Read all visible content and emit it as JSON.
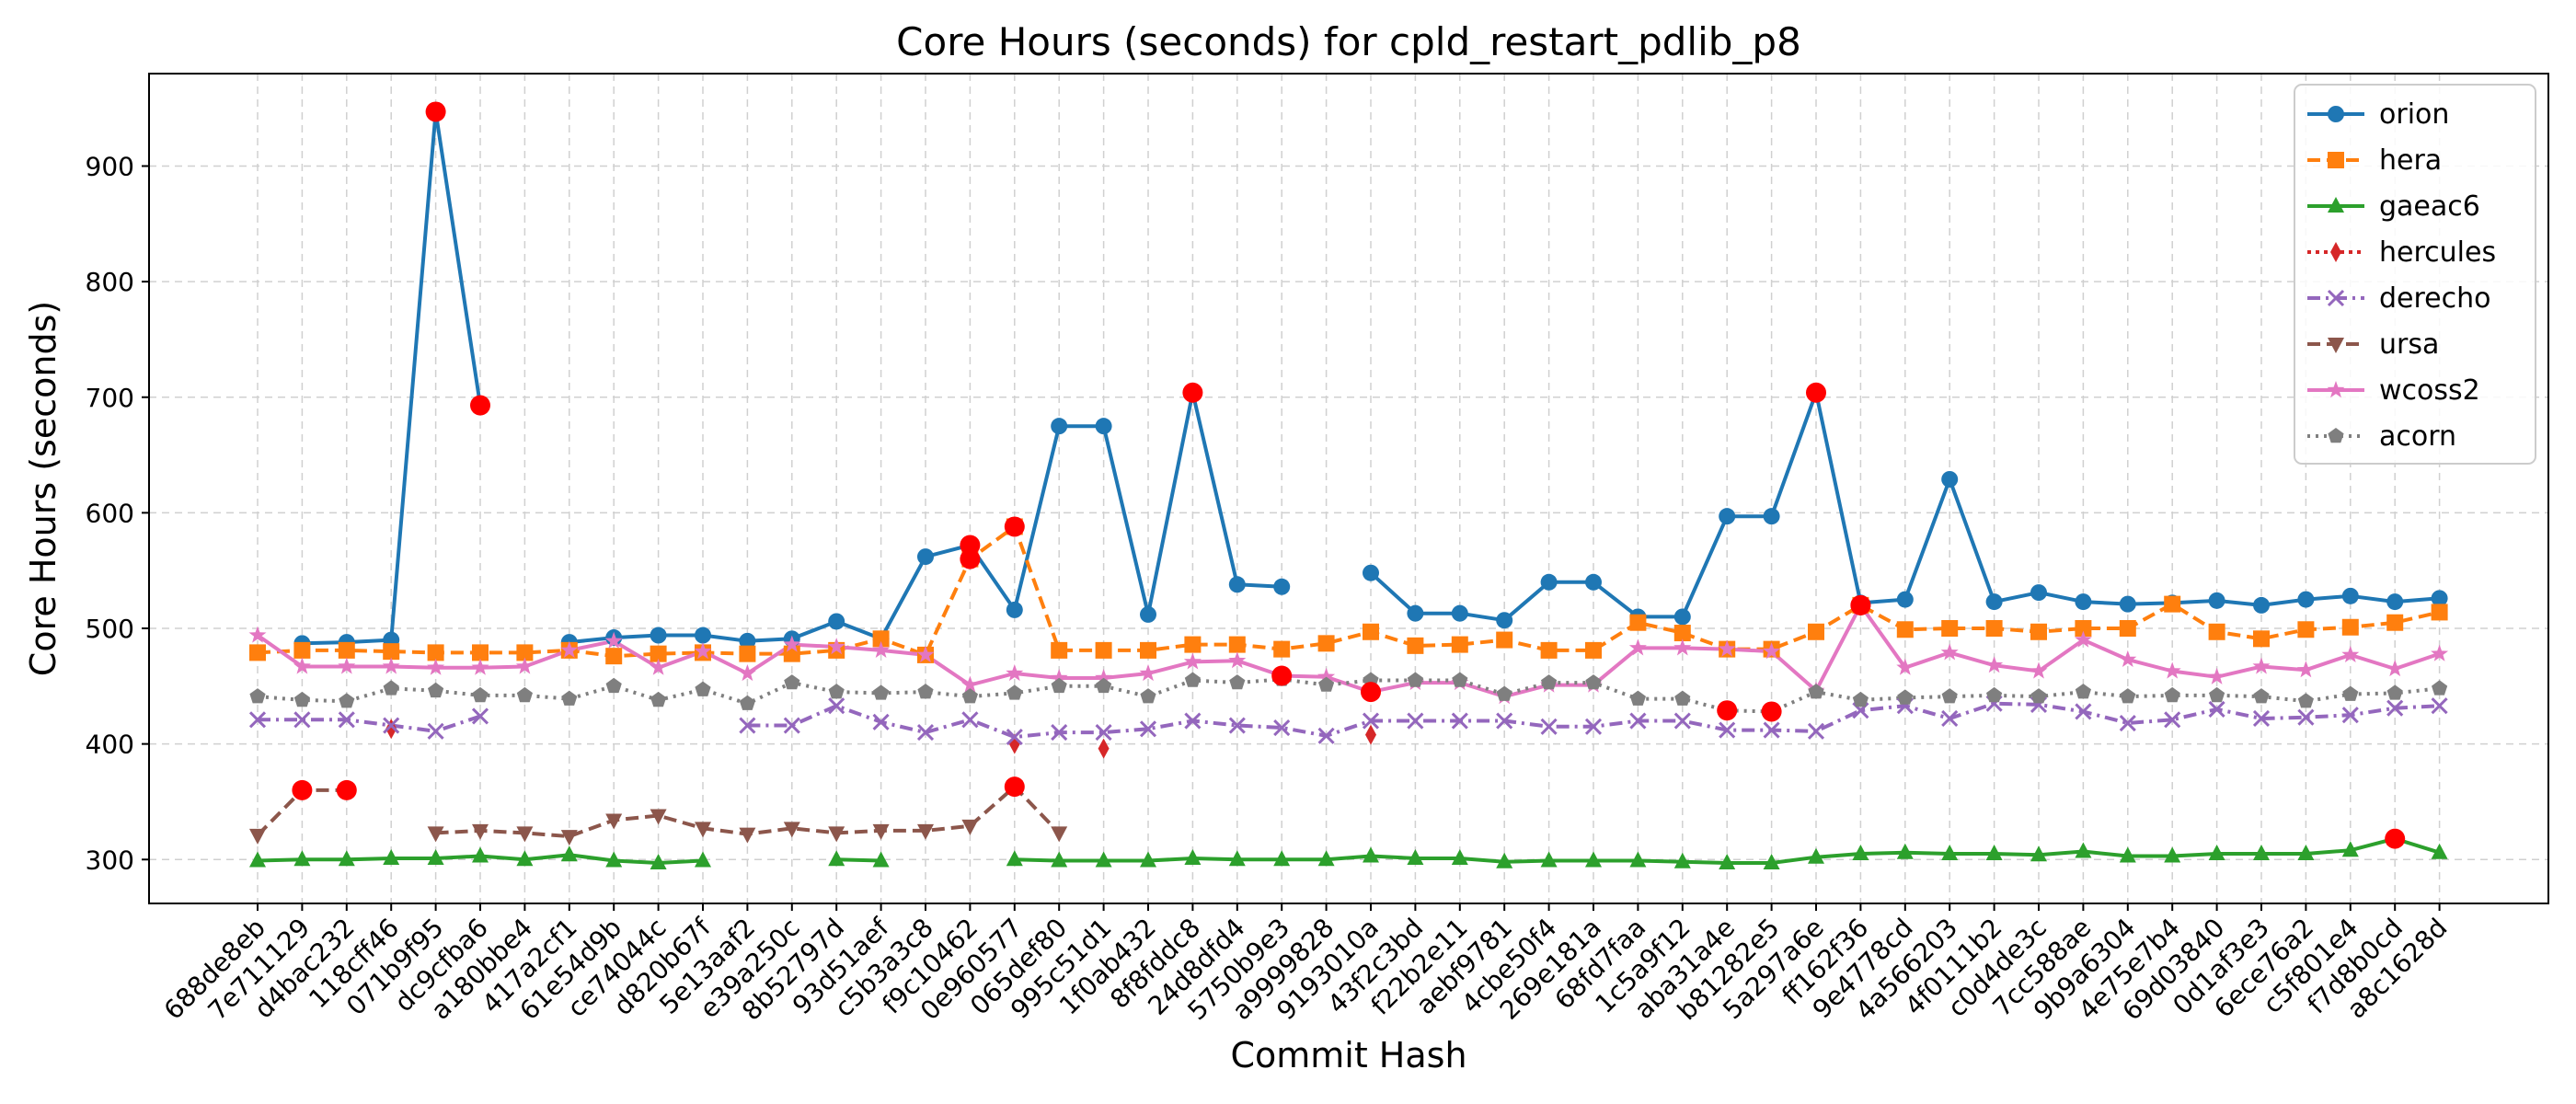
{
  "chart_data": {
    "type": "line",
    "title": "Core Hours (seconds) for cpld_restart_pdlib_p8",
    "xlabel": "Commit Hash",
    "ylabel": "Core Hours (seconds)",
    "ylim": [
      262,
      980
    ],
    "yticks": [
      300,
      400,
      500,
      600,
      700,
      800,
      900
    ],
    "grid": true,
    "legend_position": "top-right",
    "categories": [
      "688de8eb",
      "7e711129",
      "d4bac232",
      "118cff46",
      "071b9f95",
      "dc9cfba6",
      "a180bbe4",
      "417a2cf1",
      "61e54d9b",
      "ce74044c",
      "d820b67f",
      "5e13aaf2",
      "e39a250c",
      "8b52797d",
      "93d51aef",
      "c5b3a3c8",
      "f9c10462",
      "0e960577",
      "065def80",
      "995c51d1",
      "1f0ab432",
      "8f8fddc8",
      "24d8dfd4",
      "5750b9e3",
      "a9999828",
      "9193010a",
      "43f2c3bd",
      "f22b2e11",
      "aebf9781",
      "4cbe50f4",
      "269e181a",
      "68fd7faa",
      "1c5a9f12",
      "aba31a4e",
      "b81282e5",
      "5a297a6e",
      "ff162f36",
      "9e4778cd",
      "4a566203",
      "4f0111b2",
      "c0d4de3c",
      "7cc588ae",
      "9b9a6304",
      "4e75e7b4",
      "69d03840",
      "0d1af3e3",
      "6ece76a2",
      "c5f801e4",
      "f7d8b0cd",
      "a8c1628d"
    ],
    "series": [
      {
        "name": "orion",
        "color": "#1f77b4",
        "marker": "circle",
        "dash": "",
        "values": [
          null,
          487,
          488,
          490,
          947,
          693,
          null,
          488,
          492,
          494,
          494,
          489,
          491,
          506,
          491,
          562,
          572,
          516,
          675,
          675,
          512,
          704,
          538,
          536,
          null,
          548,
          513,
          513,
          507,
          540,
          540,
          510,
          510,
          597,
          597,
          704,
          522,
          525,
          629,
          523,
          531,
          523,
          521,
          522,
          524,
          520,
          525,
          528,
          523,
          526
        ],
        "highlights": [
          4,
          5,
          16,
          21,
          35
        ]
      },
      {
        "name": "hera",
        "color": "#ff7f0e",
        "marker": "square",
        "dash": "14 7",
        "values": [
          479,
          481,
          481,
          480,
          479,
          479,
          479,
          481,
          476,
          478,
          479,
          478,
          478,
          481,
          491,
          477,
          560,
          588,
          481,
          481,
          481,
          486,
          486,
          482,
          487,
          497,
          485,
          486,
          490,
          481,
          481,
          505,
          496,
          482,
          482,
          497,
          520,
          499,
          500,
          500,
          497,
          500,
          500,
          521,
          497,
          491,
          499,
          501,
          505,
          514
        ],
        "highlights": [
          16,
          17,
          36
        ]
      },
      {
        "name": "gaeac6",
        "color": "#2ca02c",
        "marker": "triangle",
        "dash": "",
        "values": [
          299,
          300,
          300,
          301,
          301,
          303,
          300,
          304,
          299,
          297,
          299,
          null,
          null,
          300,
          299,
          null,
          null,
          300,
          299,
          299,
          299,
          301,
          300,
          300,
          300,
          303,
          301,
          301,
          298,
          299,
          299,
          299,
          298,
          297,
          297,
          302,
          305,
          306,
          305,
          305,
          304,
          307,
          303,
          303,
          305,
          305,
          305,
          308,
          318,
          306
        ],
        "highlights": [
          48
        ]
      },
      {
        "name": "hercules",
        "color": "#d62728",
        "marker": "diamond",
        "dash": "4 5",
        "values": [
          null,
          null,
          null,
          413,
          null,
          null,
          null,
          null,
          null,
          null,
          null,
          null,
          null,
          null,
          null,
          null,
          null,
          400,
          null,
          396,
          null,
          null,
          null,
          null,
          null,
          408,
          null,
          null,
          null,
          null,
          null,
          null,
          null,
          null,
          null,
          null,
          null,
          null,
          null,
          null,
          null,
          null,
          null,
          null,
          null,
          null,
          null,
          null,
          null,
          null
        ],
        "highlights": []
      },
      {
        "name": "derecho",
        "color": "#9467bd",
        "marker": "x",
        "dash": "14 6 3 6",
        "values": [
          421,
          421,
          421,
          416,
          411,
          424,
          null,
          null,
          null,
          null,
          null,
          416,
          416,
          433,
          419,
          410,
          421,
          406,
          410,
          410,
          413,
          420,
          416,
          414,
          407,
          420,
          420,
          420,
          420,
          415,
          415,
          420,
          420,
          412,
          412,
          411,
          429,
          433,
          422,
          435,
          434,
          428,
          418,
          421,
          430,
          422,
          423,
          425,
          431,
          433
        ],
        "highlights": []
      },
      {
        "name": "ursa",
        "color": "#8c564b",
        "marker": "triangle-down",
        "dash": "14 7",
        "values": [
          321,
          360,
          360,
          null,
          323,
          325,
          323,
          320,
          334,
          338,
          327,
          322,
          327,
          323,
          325,
          325,
          329,
          363,
          323,
          null,
          null,
          null,
          null,
          null,
          null,
          null,
          null,
          null,
          null,
          null,
          null,
          null,
          null,
          null,
          null,
          null,
          null,
          null,
          null,
          null,
          null,
          null,
          null,
          null,
          null,
          null,
          null,
          null,
          null,
          null
        ],
        "highlights": [
          1,
          2,
          17
        ]
      },
      {
        "name": "wcoss2",
        "color": "#e377c2",
        "marker": "star",
        "dash": "",
        "values": [
          494,
          467,
          467,
          467,
          466,
          466,
          467,
          481,
          489,
          466,
          480,
          461,
          486,
          484,
          481,
          477,
          451,
          461,
          457,
          457,
          461,
          471,
          472,
          459,
          458,
          445,
          453,
          453,
          441,
          451,
          451,
          483,
          483,
          482,
          480,
          446,
          520,
          466,
          479,
          468,
          463,
          490,
          473,
          463,
          458,
          467,
          464,
          477,
          465,
          478
        ],
        "highlights": [
          23,
          25,
          36
        ]
      },
      {
        "name": "acorn",
        "color": "#7f7f7f",
        "marker": "pentagon",
        "dash": "3 6",
        "values": [
          441,
          438,
          437,
          448,
          446,
          442,
          442,
          439,
          450,
          438,
          447,
          435,
          453,
          445,
          444,
          445,
          441,
          444,
          450,
          450,
          441,
          455,
          453,
          456,
          451,
          455,
          455,
          455,
          443,
          453,
          453,
          439,
          439,
          429,
          428,
          445,
          438,
          440,
          441,
          442,
          441,
          445,
          441,
          442,
          442,
          441,
          437,
          443,
          444,
          448
        ],
        "highlights": [
          33,
          34
        ]
      }
    ]
  }
}
